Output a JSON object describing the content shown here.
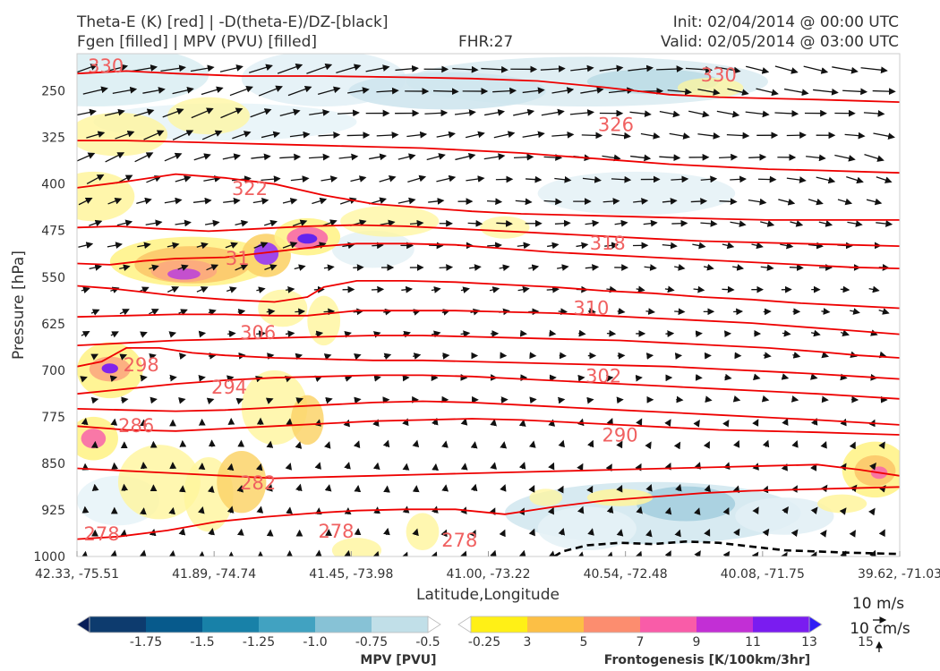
{
  "header": {
    "title_line1": "Theta-E (K) [red] | -D(theta-E)/DZ-[black]",
    "title_line2": "Fgen [filled] | MPV (PVU) [filled]",
    "fhr": "FHR:27",
    "init": "Init: 02/04/2014 @ 00:00 UTC",
    "valid": "Valid: 02/05/2014 @ 03:00 UTC"
  },
  "chart_data": {
    "type": "contour",
    "xlabel": "Latitude,Longitude",
    "ylabel": "Pressure [hPa]",
    "y_ticks": [
      250,
      325,
      400,
      475,
      550,
      625,
      700,
      775,
      850,
      925,
      1000
    ],
    "x_ticks": [
      "42.33, -75.51",
      "41.89, -74.74",
      "41.45, -73.98",
      "41.00, -73.22",
      "40.54, -72.48",
      "40.08, -71.75",
      "39.62, -71.03"
    ],
    "ylim": [
      1000,
      190
    ],
    "theta_e_contours": [
      {
        "level": 278,
        "label": "278",
        "pts": [
          [
            0,
            972
          ],
          [
            0.05,
            968
          ],
          [
            0.11,
            958
          ],
          [
            0.17,
            944
          ],
          [
            0.23,
            936
          ],
          [
            0.29,
            930
          ],
          [
            0.34,
            926
          ],
          [
            0.4,
            924
          ],
          [
            0.46,
            924
          ],
          [
            0.52,
            932
          ],
          [
            0.58,
            920
          ],
          [
            0.64,
            910
          ],
          [
            0.7,
            904
          ],
          [
            0.76,
            898
          ],
          [
            0.82,
            894
          ],
          [
            0.88,
            892
          ],
          [
            0.94,
            890
          ],
          [
            1,
            888
          ]
        ]
      },
      {
        "level": 282,
        "label": "282",
        "pts": [
          [
            0,
            858
          ],
          [
            0.06,
            862
          ],
          [
            0.12,
            866
          ],
          [
            0.18,
            870
          ],
          [
            0.24,
            874
          ],
          [
            0.3,
            872
          ],
          [
            0.36,
            870
          ],
          [
            0.42,
            868
          ],
          [
            0.48,
            866
          ],
          [
            0.54,
            864
          ],
          [
            0.6,
            862
          ],
          [
            0.66,
            860
          ],
          [
            0.72,
            858
          ],
          [
            0.78,
            856
          ],
          [
            0.84,
            854
          ],
          [
            0.9,
            852
          ],
          [
            0.95,
            860
          ],
          [
            1,
            870
          ]
        ]
      },
      {
        "level": 286,
        "label": "286",
        "pts": [
          [
            0,
            790
          ],
          [
            0.06,
            796
          ],
          [
            0.12,
            798
          ],
          [
            0.18,
            794
          ],
          [
            0.24,
            790
          ],
          [
            0.3,
            786
          ],
          [
            0.36,
            782
          ],
          [
            0.42,
            780
          ],
          [
            0.48,
            778
          ],
          [
            0.54,
            780
          ],
          [
            0.6,
            784
          ],
          [
            0.66,
            788
          ],
          [
            0.72,
            792
          ],
          [
            0.78,
            796
          ],
          [
            0.84,
            798
          ],
          [
            0.9,
            800
          ],
          [
            0.95,
            802
          ],
          [
            1,
            804
          ]
        ]
      },
      {
        "level": 290,
        "label": "290",
        "pts": [
          [
            0,
            762
          ],
          [
            0.06,
            764
          ],
          [
            0.12,
            766
          ],
          [
            0.18,
            764
          ],
          [
            0.24,
            760
          ],
          [
            0.3,
            756
          ],
          [
            0.36,
            752
          ],
          [
            0.42,
            750
          ],
          [
            0.48,
            752
          ],
          [
            0.54,
            756
          ],
          [
            0.6,
            760
          ],
          [
            0.66,
            764
          ],
          [
            0.72,
            768
          ],
          [
            0.78,
            772
          ],
          [
            0.84,
            776
          ],
          [
            0.9,
            780
          ],
          [
            0.95,
            784
          ],
          [
            1,
            788
          ]
        ]
      },
      {
        "level": 294,
        "label": "294",
        "pts": [
          [
            0,
            738
          ],
          [
            0.06,
            730
          ],
          [
            0.12,
            722
          ],
          [
            0.18,
            716
          ],
          [
            0.24,
            712
          ],
          [
            0.3,
            710
          ],
          [
            0.36,
            708
          ],
          [
            0.42,
            708
          ],
          [
            0.48,
            710
          ],
          [
            0.54,
            714
          ],
          [
            0.6,
            718
          ],
          [
            0.66,
            722
          ],
          [
            0.72,
            726
          ],
          [
            0.78,
            730
          ],
          [
            0.84,
            734
          ],
          [
            0.9,
            738
          ],
          [
            0.95,
            742
          ],
          [
            1,
            746
          ]
        ]
      },
      {
        "level": 298,
        "label": "298",
        "pts": [
          [
            0,
            694
          ],
          [
            0.03,
            686
          ],
          [
            0.06,
            664
          ],
          [
            0.1,
            664
          ],
          [
            0.14,
            672
          ],
          [
            0.18,
            676
          ],
          [
            0.24,
            680
          ],
          [
            0.3,
            682
          ],
          [
            0.36,
            684
          ],
          [
            0.42,
            684
          ],
          [
            0.48,
            686
          ],
          [
            0.54,
            688
          ],
          [
            0.6,
            690
          ],
          [
            0.66,
            692
          ],
          [
            0.72,
            694
          ],
          [
            0.78,
            698
          ],
          [
            0.84,
            702
          ],
          [
            0.9,
            706
          ],
          [
            0.95,
            710
          ],
          [
            1,
            714
          ]
        ]
      },
      {
        "level": 302,
        "label": "302",
        "pts": [
          [
            0,
            660
          ],
          [
            0.06,
            656
          ],
          [
            0.12,
            652
          ],
          [
            0.18,
            650
          ],
          [
            0.24,
            648
          ],
          [
            0.3,
            646
          ],
          [
            0.36,
            644
          ],
          [
            0.42,
            644
          ],
          [
            0.48,
            646
          ],
          [
            0.54,
            648
          ],
          [
            0.6,
            650
          ],
          [
            0.66,
            652
          ],
          [
            0.72,
            656
          ],
          [
            0.78,
            660
          ],
          [
            0.84,
            664
          ],
          [
            0.9,
            670
          ],
          [
            0.95,
            676
          ],
          [
            1,
            680
          ]
        ]
      },
      {
        "level": 306,
        "label": "306",
        "pts": [
          [
            0,
            614
          ],
          [
            0.06,
            612
          ],
          [
            0.12,
            610
          ],
          [
            0.18,
            610
          ],
          [
            0.24,
            612
          ],
          [
            0.28,
            612
          ],
          [
            0.34,
            604
          ],
          [
            0.4,
            604
          ],
          [
            0.46,
            604
          ],
          [
            0.52,
            606
          ],
          [
            0.58,
            608
          ],
          [
            0.64,
            612
          ],
          [
            0.7,
            616
          ],
          [
            0.76,
            620
          ],
          [
            0.82,
            624
          ],
          [
            0.88,
            630
          ],
          [
            0.94,
            636
          ],
          [
            1,
            642
          ]
        ]
      },
      {
        "level": 310,
        "label": "310",
        "pts": [
          [
            0,
            564
          ],
          [
            0.04,
            568
          ],
          [
            0.08,
            574
          ],
          [
            0.12,
            580
          ],
          [
            0.18,
            586
          ],
          [
            0.24,
            590
          ],
          [
            0.28,
            582
          ],
          [
            0.3,
            566
          ],
          [
            0.34,
            556
          ],
          [
            0.4,
            556
          ],
          [
            0.46,
            558
          ],
          [
            0.52,
            562
          ],
          [
            0.58,
            566
          ],
          [
            0.64,
            572
          ],
          [
            0.7,
            576
          ],
          [
            0.76,
            582
          ],
          [
            0.82,
            586
          ],
          [
            0.88,
            592
          ],
          [
            0.94,
            596
          ],
          [
            1,
            600
          ]
        ]
      },
      {
        "level": 314,
        "label": "314",
        "pts": [
          [
            0,
            528
          ],
          [
            0.04,
            530
          ],
          [
            0.08,
            524
          ],
          [
            0.12,
            520
          ],
          [
            0.18,
            518
          ],
          [
            0.22,
            512
          ],
          [
            0.26,
            506
          ],
          [
            0.3,
            500
          ],
          [
            0.34,
            496
          ],
          [
            0.4,
            496
          ],
          [
            0.46,
            498
          ],
          [
            0.52,
            504
          ],
          [
            0.58,
            510
          ],
          [
            0.64,
            514
          ],
          [
            0.7,
            518
          ],
          [
            0.76,
            522
          ],
          [
            0.82,
            526
          ],
          [
            0.88,
            530
          ],
          [
            0.94,
            534
          ],
          [
            1,
            536
          ]
        ]
      },
      {
        "level": 318,
        "label": "318",
        "pts": [
          [
            0,
            470
          ],
          [
            0.05,
            468
          ],
          [
            0.1,
            472
          ],
          [
            0.16,
            476
          ],
          [
            0.22,
            472
          ],
          [
            0.28,
            468
          ],
          [
            0.34,
            466
          ],
          [
            0.4,
            468
          ],
          [
            0.46,
            472
          ],
          [
            0.52,
            476
          ],
          [
            0.58,
            480
          ],
          [
            0.64,
            484
          ],
          [
            0.7,
            488
          ],
          [
            0.76,
            492
          ],
          [
            0.82,
            494
          ],
          [
            0.88,
            496
          ],
          [
            0.94,
            498
          ],
          [
            1,
            500
          ]
        ]
      },
      {
        "level": 322,
        "label": "322",
        "pts": [
          [
            0,
            406
          ],
          [
            0.06,
            396
          ],
          [
            0.12,
            384
          ],
          [
            0.18,
            390
          ],
          [
            0.24,
            400
          ],
          [
            0.3,
            418
          ],
          [
            0.36,
            432
          ],
          [
            0.42,
            438
          ],
          [
            0.48,
            444
          ],
          [
            0.54,
            448
          ],
          [
            0.6,
            450
          ],
          [
            0.66,
            452
          ],
          [
            0.72,
            454
          ],
          [
            0.78,
            456
          ],
          [
            0.84,
            458
          ],
          [
            0.9,
            458
          ],
          [
            0.95,
            458
          ],
          [
            1,
            458
          ]
        ]
      },
      {
        "level": 326,
        "label": "326",
        "pts": [
          [
            0,
            330
          ],
          [
            0.06,
            330
          ],
          [
            0.12,
            332
          ],
          [
            0.18,
            334
          ],
          [
            0.24,
            336
          ],
          [
            0.3,
            338
          ],
          [
            0.36,
            340
          ],
          [
            0.42,
            342
          ],
          [
            0.48,
            346
          ],
          [
            0.54,
            350
          ],
          [
            0.6,
            356
          ],
          [
            0.66,
            362
          ],
          [
            0.72,
            368
          ],
          [
            0.78,
            372
          ],
          [
            0.84,
            376
          ],
          [
            0.9,
            378
          ],
          [
            0.95,
            380
          ],
          [
            1,
            382
          ]
        ]
      },
      {
        "level": 330,
        "label": "330",
        "pts": [
          [
            0,
            222
          ],
          [
            0.06,
            218
          ],
          [
            0.12,
            222
          ],
          [
            0.2,
            226
          ],
          [
            0.3,
            226
          ],
          [
            0.4,
            228
          ],
          [
            0.48,
            230
          ],
          [
            0.56,
            234
          ],
          [
            0.64,
            244
          ],
          [
            0.72,
            256
          ],
          [
            0.78,
            260
          ],
          [
            0.84,
            262
          ],
          [
            0.9,
            264
          ],
          [
            0.95,
            266
          ],
          [
            1,
            268
          ]
        ]
      }
    ],
    "theta_e_labels": [
      {
        "text": "330",
        "x": 0.035,
        "p": 220
      },
      {
        "text": "330",
        "x": 0.78,
        "p": 235
      },
      {
        "text": "326",
        "x": 0.655,
        "p": 315
      },
      {
        "text": "322",
        "x": 0.21,
        "p": 418
      },
      {
        "text": "318",
        "x": 0.645,
        "p": 506
      },
      {
        "text": "31",
        "x": 0.195,
        "p": 530
      },
      {
        "text": "310",
        "x": 0.625,
        "p": 610
      },
      {
        "text": "306",
        "x": 0.22,
        "p": 650
      },
      {
        "text": "302",
        "x": 0.64,
        "p": 720
      },
      {
        "text": "298",
        "x": 0.078,
        "p": 702
      },
      {
        "text": "294",
        "x": 0.185,
        "p": 738
      },
      {
        "text": "290",
        "x": 0.66,
        "p": 815
      },
      {
        "text": "286",
        "x": 0.072,
        "p": 800
      },
      {
        "text": "282",
        "x": 0.22,
        "p": 892
      },
      {
        "text": "278",
        "x": 0.03,
        "p": 974
      },
      {
        "text": "278",
        "x": 0.315,
        "p": 970
      },
      {
        "text": "278",
        "x": 0.465,
        "p": 984
      }
    ],
    "stability_contour": {
      "style": "dashed",
      "color": "#000000",
      "pts": [
        [
          0.58,
          1000
        ],
        [
          0.59,
          992
        ],
        [
          0.62,
          982
        ],
        [
          0.66,
          978
        ],
        [
          0.7,
          980
        ],
        [
          0.74,
          976
        ],
        [
          0.78,
          978
        ],
        [
          0.82,
          984
        ],
        [
          0.86,
          990
        ],
        [
          0.9,
          992
        ],
        [
          0.94,
          994
        ],
        [
          1,
          996
        ]
      ]
    },
    "mpv_colorbar": {
      "label": "MPV [PVU]",
      "ticks": [
        "-1.75",
        "-1.5",
        "-1.25",
        "-1.0",
        "-0.75",
        "-0.5",
        "-0.25"
      ],
      "colors": [
        "#081d58",
        "#0d3b6e",
        "#075a8c",
        "#1881a8",
        "#41a2c1",
        "#87c2d6",
        "#c1dfe8",
        "#ffffff"
      ]
    },
    "fgen_colorbar": {
      "label": "Frontogenesis [K/100km/3hr]",
      "ticks": [
        "3",
        "5",
        "7",
        "9",
        "11",
        "13",
        "15"
      ],
      "colors": [
        "#ffffff",
        "#fff016",
        "#fcbf45",
        "#fc8d6f",
        "#f95ca8",
        "#c22fd5",
        "#7a1cf0",
        "#2f1df5"
      ]
    },
    "wind_key": {
      "label1": "10 m/s",
      "label2": "10 cm/s"
    }
  },
  "colors": {
    "theta_e": "#ee0000",
    "label": "#f06060",
    "vector": "#111111",
    "mpv_outline": "#9aabcc"
  }
}
